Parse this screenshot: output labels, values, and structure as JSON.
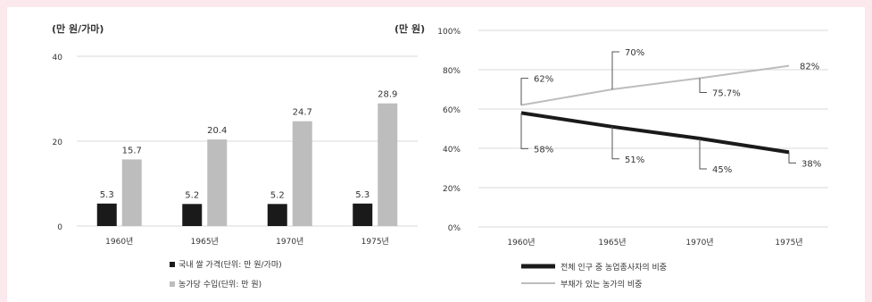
{
  "chart_data": [
    {
      "type": "bar",
      "unit_label": "(만 원/가마)",
      "y_ticks": [
        "0",
        "20",
        "40"
      ],
      "ylim": [
        0,
        40
      ],
      "categories": [
        "1960년",
        "1965년",
        "1970년",
        "1975년"
      ],
      "series": [
        {
          "name": "국내 쌀 가격(단위: 만 원/가마)",
          "color": "#1a1a1a",
          "values": [
            5.3,
            5.2,
            5.2,
            5.3
          ],
          "labels": [
            "5.3",
            "5.2",
            "5.2",
            "5.3"
          ]
        },
        {
          "name": "농가당 수입(단위: 만 원)",
          "color": "#bdbdbd",
          "values": [
            15.7,
            20.4,
            24.7,
            28.9
          ],
          "labels": [
            "15.7",
            "20.4",
            "24.7",
            "28.9"
          ]
        }
      ],
      "grid": true,
      "legend_position": "bottom"
    },
    {
      "type": "line",
      "unit_label": "(만 원)",
      "y_ticks": [
        "0%",
        "20%",
        "40%",
        "60%",
        "80%",
        "100%"
      ],
      "ylim": [
        0,
        100
      ],
      "categories": [
        "1960년",
        "1965년",
        "1970년",
        "1975년"
      ],
      "series": [
        {
          "name": "전체 인구 중 농업종사자의 비중",
          "color": "#1a1a1a",
          "values": [
            58,
            51,
            45,
            38
          ],
          "labels": [
            "58%",
            "51%",
            "45%",
            "38%"
          ]
        },
        {
          "name": "부채가 있는 농가의 비중",
          "color": "#bdbdbd",
          "values": [
            62,
            70,
            75.7,
            82
          ],
          "labels": [
            "62%",
            "70%",
            "75.7%",
            "82%"
          ]
        }
      ],
      "grid": true,
      "legend_position": "bottom-left"
    }
  ]
}
